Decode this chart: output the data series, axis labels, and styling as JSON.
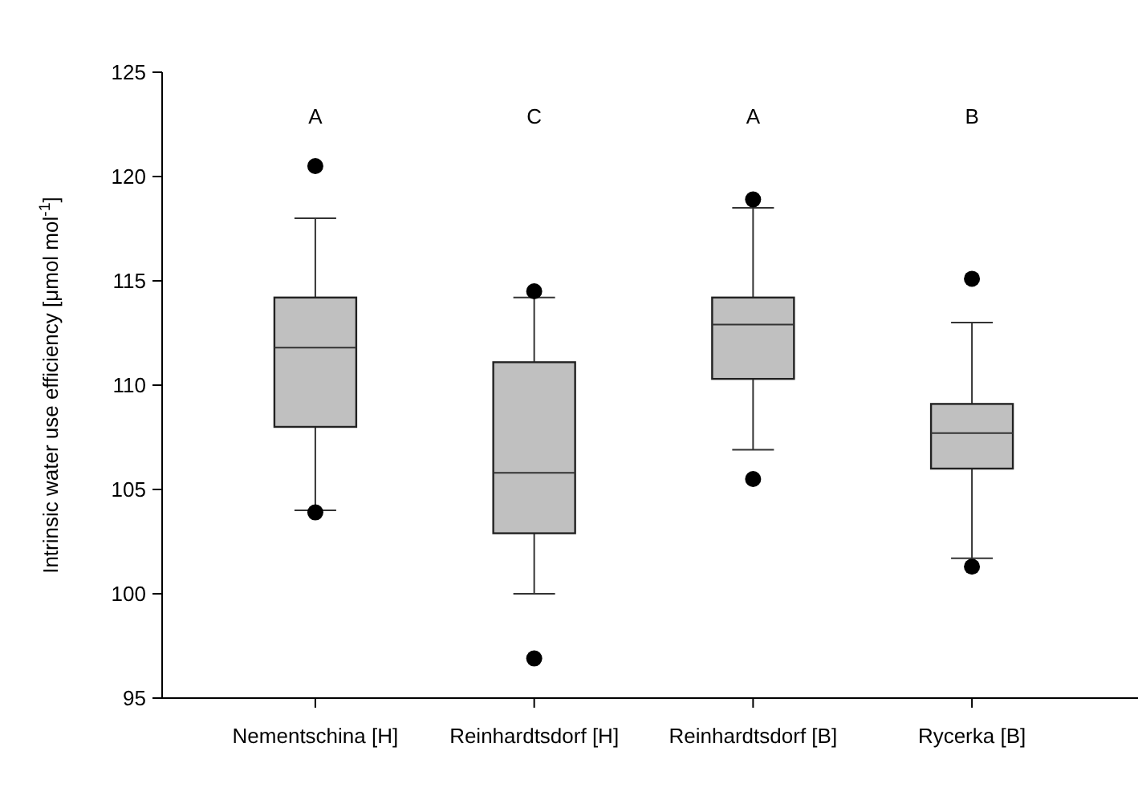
{
  "chart_data": {
    "type": "box",
    "ylabel": "Intrinsic water use efficiency [μmol mol$^{-1}$]",
    "categories": [
      "Nementschina [H]",
      "Reinhardtsdorf [H]",
      "Reinhardtsdorf [B]",
      "Rycerka [B]"
    ],
    "boxes": [
      {
        "low": 104.0,
        "q1": 108.0,
        "median": 111.8,
        "q3": 114.2,
        "high": 118.0,
        "outliers": [
          120.5,
          103.9
        ]
      },
      {
        "low": 100.0,
        "q1": 102.9,
        "median": 105.8,
        "q3": 111.1,
        "high": 114.2,
        "outliers": [
          114.5,
          96.9
        ]
      },
      {
        "low": 106.9,
        "q1": 110.3,
        "median": 112.9,
        "q3": 114.2,
        "high": 118.5,
        "outliers": [
          118.9,
          105.5
        ]
      },
      {
        "low": 101.7,
        "q1": 106.0,
        "median": 107.7,
        "q3": 109.1,
        "high": 113.0,
        "outliers": [
          115.1,
          101.3
        ]
      }
    ],
    "color": "#c0c0c0",
    "ylim": [
      95,
      125
    ],
    "yticks": [
      95,
      100,
      105,
      110,
      115,
      120,
      125
    ],
    "annotations": [
      "A",
      "C",
      "A",
      "B"
    ]
  }
}
